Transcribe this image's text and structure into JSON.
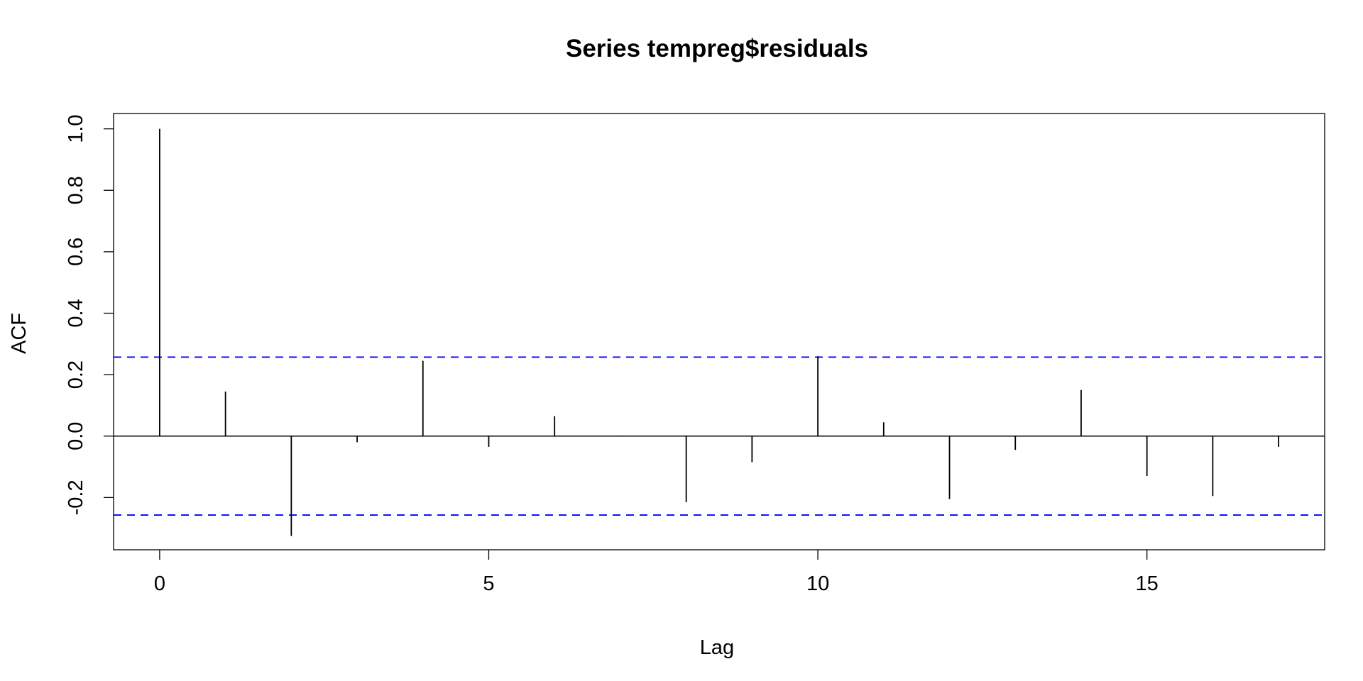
{
  "chart_data": {
    "type": "bar",
    "title": "Series  tempreg$residuals",
    "xlabel": "Lag",
    "ylabel": "ACF",
    "x": [
      0,
      1,
      2,
      3,
      4,
      5,
      6,
      7,
      8,
      9,
      10,
      11,
      12,
      13,
      14,
      15,
      16,
      17
    ],
    "values": [
      1.0,
      0.145,
      -0.325,
      -0.02,
      0.245,
      -0.035,
      0.065,
      0.002,
      -0.215,
      -0.085,
      0.26,
      0.045,
      -0.205,
      -0.045,
      0.15,
      -0.13,
      -0.195,
      -0.035
    ],
    "confidence_limit": 0.257,
    "xlim": [
      -0.7,
      17.7
    ],
    "ylim": [
      -0.37,
      1.05
    ],
    "x_ticks": [
      0,
      5,
      10,
      15
    ],
    "x_tick_labels": [
      "0",
      "5",
      "10",
      "15"
    ],
    "y_ticks": [
      -0.2,
      0.0,
      0.2,
      0.4,
      0.6,
      0.8,
      1.0
    ],
    "y_tick_labels": [
      "-0.2",
      "0.0",
      "0.2",
      "0.4",
      "0.6",
      "0.8",
      "1.0"
    ],
    "colors": {
      "bars": "#000000",
      "confidence": "#0000ff",
      "zero_line": "#000000"
    },
    "grid": false
  }
}
